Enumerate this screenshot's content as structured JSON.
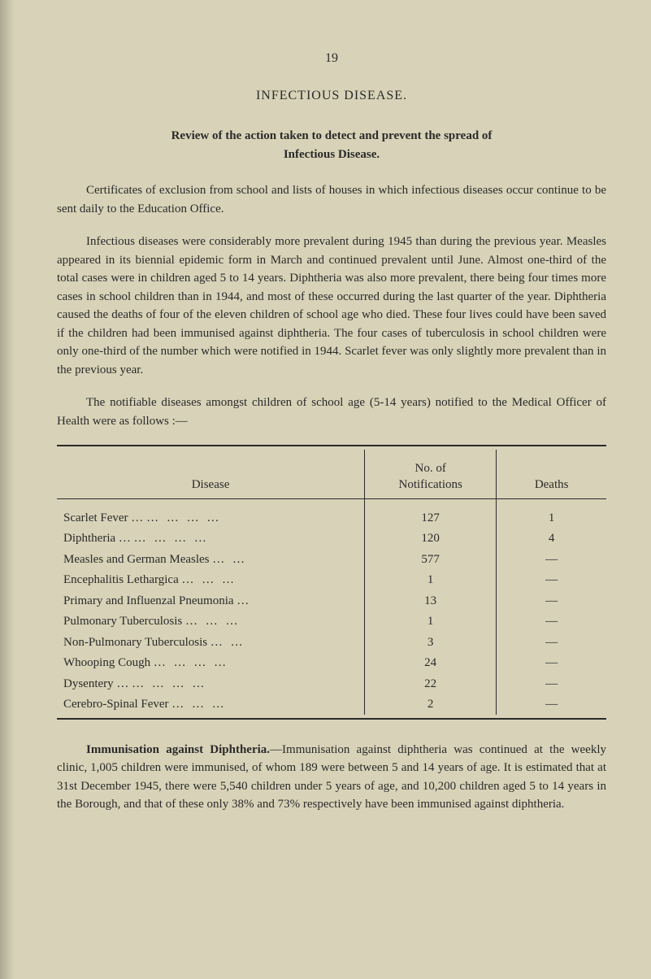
{
  "page_number": "19",
  "section_title": "INFECTIOUS DISEASE.",
  "subtitle": {
    "line1": "Review of the action taken to detect and prevent the spread of",
    "line2": "Infectious Disease."
  },
  "paragraphs": {
    "p1": "Certificates of exclusion from school and lists of houses in which infectious diseases occur continue to be sent daily to the Education Office.",
    "p2": "Infectious diseases were considerably more prevalent during 1945 than during the previous year. Measles appeared in its biennial epidemic form in March and continued prevalent until June. Almost one-third of the total cases were in children aged 5 to 14 years. Diphtheria was also more prevalent, there being four times more cases in school children than in 1944, and most of these occurred during the last quarter of the year. Diphtheria caused the deaths of four of the eleven children of school age who died. These four lives could have been saved if the children had been immunised against diphtheria. The four cases of tuberculosis in school children were only one-third of the number which were notified in 1944. Scarlet fever was only slightly more prevalent than in the previous year.",
    "p3": "The notifiable diseases amongst children of school age (5-14 years) notified to the Medical Officer of Health were as follows :—"
  },
  "table": {
    "headers": {
      "disease": "Disease",
      "notifications_a": "No. of",
      "notifications_b": "Notifications",
      "deaths": "Deaths"
    },
    "rows": [
      {
        "disease": "Scarlet Fever …",
        "dots": "…   …   …   …",
        "notif": "127",
        "deaths": "1"
      },
      {
        "disease": "Diphtheria   …",
        "dots": "…   …   …   …",
        "notif": "120",
        "deaths": "4"
      },
      {
        "disease": "Measles and German Measles",
        "dots": "…   …",
        "notif": "577",
        "deaths": "—"
      },
      {
        "disease": "Encephalitis Lethargica",
        "dots": "…   …   …",
        "notif": "1",
        "deaths": "—"
      },
      {
        "disease": "Primary and Influenzal Pneumonia",
        "dots": "…",
        "notif": "13",
        "deaths": "—"
      },
      {
        "disease": "Pulmonary Tuberculosis",
        "dots": "…   …   …",
        "notif": "1",
        "deaths": "—"
      },
      {
        "disease": "Non-Pulmonary Tuberculosis",
        "dots": "…   …",
        "notif": "3",
        "deaths": "—"
      },
      {
        "disease": "Whooping Cough",
        "dots": "…   …   …   …",
        "notif": "24",
        "deaths": "—"
      },
      {
        "disease": "Dysentery   …",
        "dots": "…   …   …   …",
        "notif": "22",
        "deaths": "—"
      },
      {
        "disease": "Cerebro-Spinal Fever",
        "dots": "…   …   …",
        "notif": "2",
        "deaths": "—"
      }
    ]
  },
  "final_para": {
    "lead": "Immunisation against Diphtheria.",
    "text": "—Immunisation against diphtheria was continued at the weekly clinic, 1,005 children were immunised, of whom 189 were between 5 and 14 years of age.   It is estimated that at 31st December 1945, there were 5,540 children under 5 years of age, and 10,200 children aged 5 to 14 years in the Borough, and that of these only 38% and 73% respectively have been immunised against diphtheria."
  },
  "colors": {
    "background": "#d8d3b8",
    "text": "#2a2a2a",
    "rule": "#2a2a2a"
  },
  "typography": {
    "body_font": "Times New Roman, serif",
    "body_size_pt": 11,
    "title_size_pt": 12,
    "line_height": 1.5
  }
}
